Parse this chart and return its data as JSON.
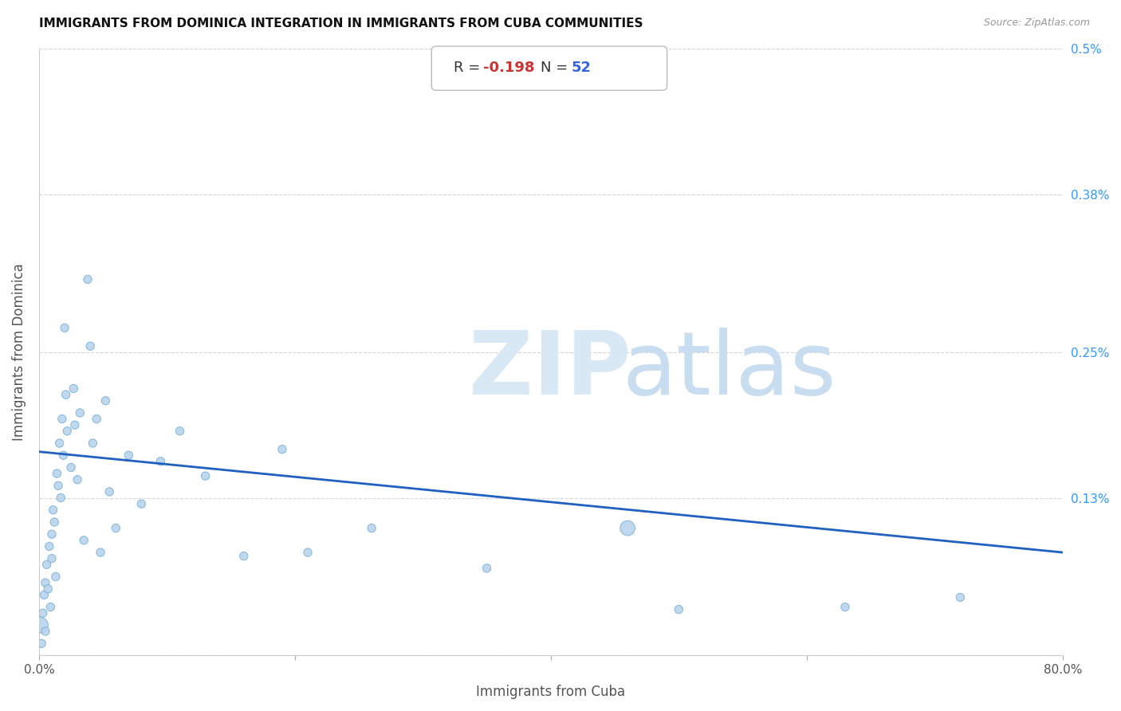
{
  "title": "IMMIGRANTS FROM DOMINICA INTEGRATION IN IMMIGRANTS FROM CUBA COMMUNITIES",
  "source": "Source: ZipAtlas.com",
  "xlabel": "Immigrants from Cuba",
  "ylabel": "Immigrants from Dominica",
  "R": -0.198,
  "N": 52,
  "xlim": [
    0.0,
    0.8
  ],
  "ylim": [
    0.0,
    0.5
  ],
  "xticks": [
    0.0,
    0.2,
    0.4,
    0.6,
    0.8
  ],
  "xtick_labels": [
    "0.0%",
    "",
    "",
    "",
    "80.0%"
  ],
  "ytick_positions": [
    0.0,
    0.13,
    0.25,
    0.38,
    0.5
  ],
  "ytick_labels_right": [
    "",
    "0.13%",
    "0.25%",
    "0.38%",
    "0.5%"
  ],
  "scatter_x": [
    0.001,
    0.002,
    0.003,
    0.004,
    0.005,
    0.005,
    0.006,
    0.007,
    0.008,
    0.009,
    0.01,
    0.01,
    0.011,
    0.012,
    0.013,
    0.014,
    0.015,
    0.016,
    0.017,
    0.018,
    0.019,
    0.02,
    0.021,
    0.022,
    0.025,
    0.027,
    0.028,
    0.03,
    0.032,
    0.035,
    0.038,
    0.04,
    0.042,
    0.045,
    0.048,
    0.052,
    0.055,
    0.06,
    0.07,
    0.08,
    0.095,
    0.11,
    0.13,
    0.16,
    0.19,
    0.21,
    0.26,
    0.35,
    0.46,
    0.5,
    0.63,
    0.72
  ],
  "scatter_y": [
    0.025,
    0.01,
    0.035,
    0.05,
    0.06,
    0.02,
    0.075,
    0.055,
    0.09,
    0.04,
    0.1,
    0.08,
    0.12,
    0.11,
    0.065,
    0.15,
    0.14,
    0.175,
    0.13,
    0.195,
    0.165,
    0.27,
    0.215,
    0.185,
    0.155,
    0.22,
    0.19,
    0.145,
    0.2,
    0.095,
    0.31,
    0.255,
    0.175,
    0.195,
    0.085,
    0.21,
    0.135,
    0.105,
    0.165,
    0.125,
    0.16,
    0.185,
    0.148,
    0.082,
    0.17,
    0.085,
    0.105,
    0.072,
    0.105,
    0.038,
    0.04,
    0.048
  ],
  "scatter_sizes": [
    40,
    40,
    40,
    40,
    40,
    40,
    40,
    40,
    40,
    40,
    40,
    40,
    40,
    40,
    40,
    40,
    40,
    40,
    40,
    40,
    40,
    40,
    40,
    40,
    40,
    40,
    40,
    40,
    40,
    40,
    40,
    40,
    40,
    40,
    40,
    40,
    40,
    40,
    40,
    40,
    40,
    40,
    40,
    40,
    40,
    40,
    40,
    40,
    40,
    40,
    40,
    40
  ],
  "large_dot_indices": [
    0,
    2,
    48
  ],
  "dot_facecolor": "#b8d4ec",
  "dot_edgecolor": "#7aafd4",
  "line_color": "#2060c0",
  "grid_color": "#cccccc",
  "title_color": "#111111",
  "axis_label_color": "#555555",
  "right_tick_color": "#3399ff",
  "watermark_zip_color": "#d8e8f4",
  "watermark_atlas_color": "#c8ddf0",
  "R_label_color": "#333333",
  "R_value_color": "#cc3333",
  "N_label_color": "#333333",
  "N_value_color": "#3366dd",
  "annot_box_edge": "#bbbbbb",
  "source_color": "#999999"
}
